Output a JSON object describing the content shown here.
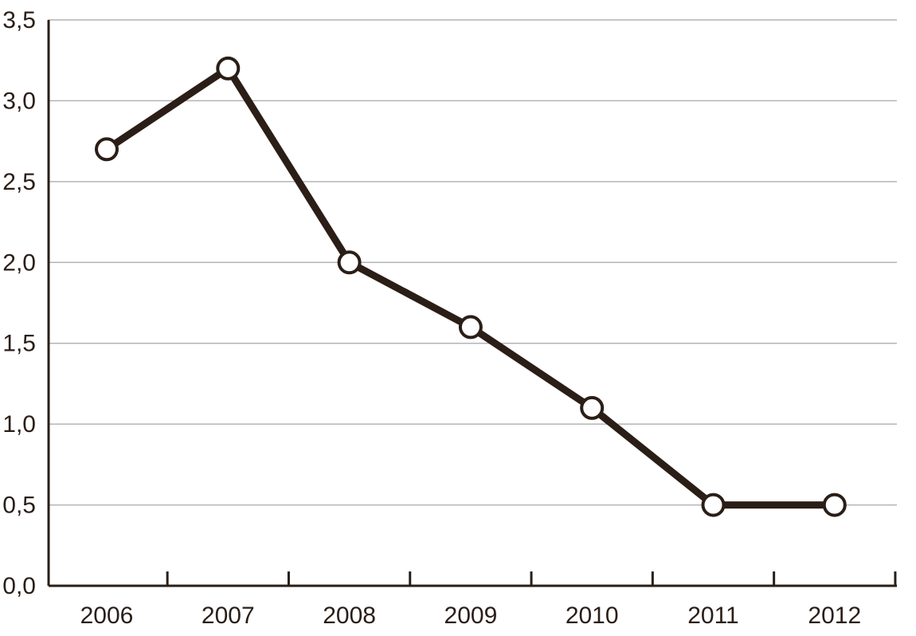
{
  "chart_data": {
    "type": "line",
    "title": "",
    "xlabel": "",
    "ylabel": "",
    "categories": [
      "2006",
      "2007",
      "2008",
      "2009",
      "2010",
      "2011",
      "2012"
    ],
    "series": [
      {
        "values": [
          2.7,
          3.2,
          2.0,
          1.6,
          1.1,
          0.5,
          0.5
        ]
      }
    ],
    "ylim": [
      0,
      3.5
    ],
    "y_ticks": [
      "0,0",
      "0,5",
      "1,0",
      "1,5",
      "2,0",
      "2,5",
      "3,0",
      "3,5"
    ],
    "grid": true,
    "legend": "none",
    "colors": {
      "line": "#2a1e17",
      "grid": "#b4b4b4",
      "marker_fill": "#ffffff"
    }
  }
}
